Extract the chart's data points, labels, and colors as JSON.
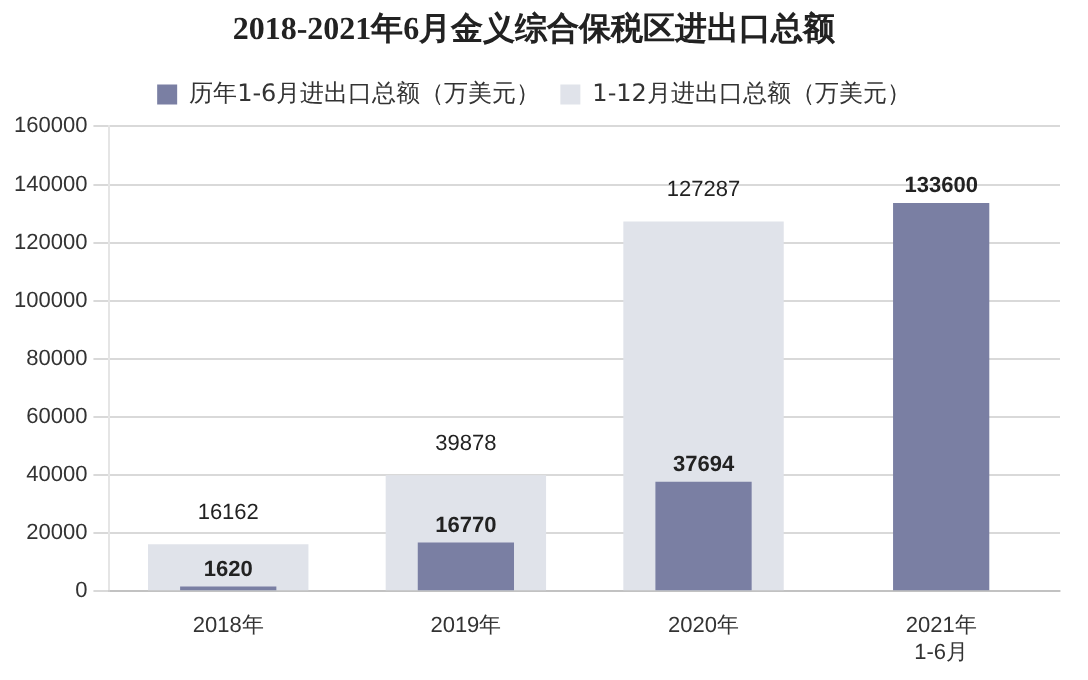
{
  "chart_data": {
    "type": "bar",
    "title": "2018-2021年6月金义综合保税区进出口总额",
    "categories": [
      "2018年",
      "2019年",
      "2020年",
      "2021年1-6月"
    ],
    "series": [
      {
        "name": "1-12月进出口总额（万美元）",
        "color": "#e0e3ea",
        "values": [
          16162,
          39878,
          127287,
          null
        ]
      },
      {
        "name": "历年1-6月进出口总额（万美元）",
        "color": "#7a7fa3",
        "values": [
          1620,
          16770,
          37694,
          133600
        ]
      }
    ],
    "ylim": [
      0,
      160000
    ],
    "yticks": [
      0,
      20000,
      40000,
      60000,
      80000,
      100000,
      120000,
      140000,
      160000
    ],
    "grid": "y",
    "legend": "top",
    "data_labels": true
  }
}
